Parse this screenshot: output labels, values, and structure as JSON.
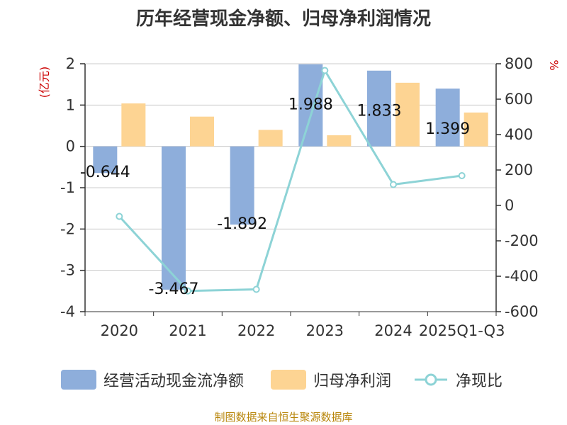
{
  "chart_data": {
    "type": "bar",
    "title": "历年经营现金净额、归母净利润情况",
    "categories": [
      "2020",
      "2021",
      "2022",
      "2023",
      "2024",
      "2025Q1-Q3"
    ],
    "series": [
      {
        "name": "经营活动现金流净额",
        "type": "bar",
        "axis": "left",
        "color": "#8eaedb",
        "values": [
          -0.644,
          -3.467,
          -1.892,
          1.988,
          1.833,
          1.399
        ],
        "labels": [
          "-0.644",
          "-3.467",
          "-1.892",
          "1.988",
          "1.833",
          "1.399"
        ]
      },
      {
        "name": "归母净利润",
        "type": "bar",
        "axis": "left",
        "color": "#fdd493",
        "values": [
          1.04,
          0.72,
          0.4,
          0.27,
          1.54,
          0.82
        ]
      },
      {
        "name": "净现比",
        "type": "line",
        "axis": "right",
        "color": "#8dd3d6",
        "values": [
          -62,
          -483,
          -474,
          762,
          118,
          168
        ]
      }
    ],
    "ylabel_left": "(亿元)",
    "ylabel_right": "%",
    "ylim_left": [
      -4,
      2
    ],
    "yticks_left": [
      "2",
      "1",
      "0",
      "-1",
      "-2",
      "-3",
      "-4"
    ],
    "ylim_right": [
      -600,
      800
    ],
    "yticks_right": [
      "800",
      "600",
      "400",
      "200",
      "0",
      "-200",
      "-400",
      "-600"
    ],
    "grid": true,
    "legend_position": "bottom"
  },
  "source": "制图数据来自恒生聚源数据库"
}
